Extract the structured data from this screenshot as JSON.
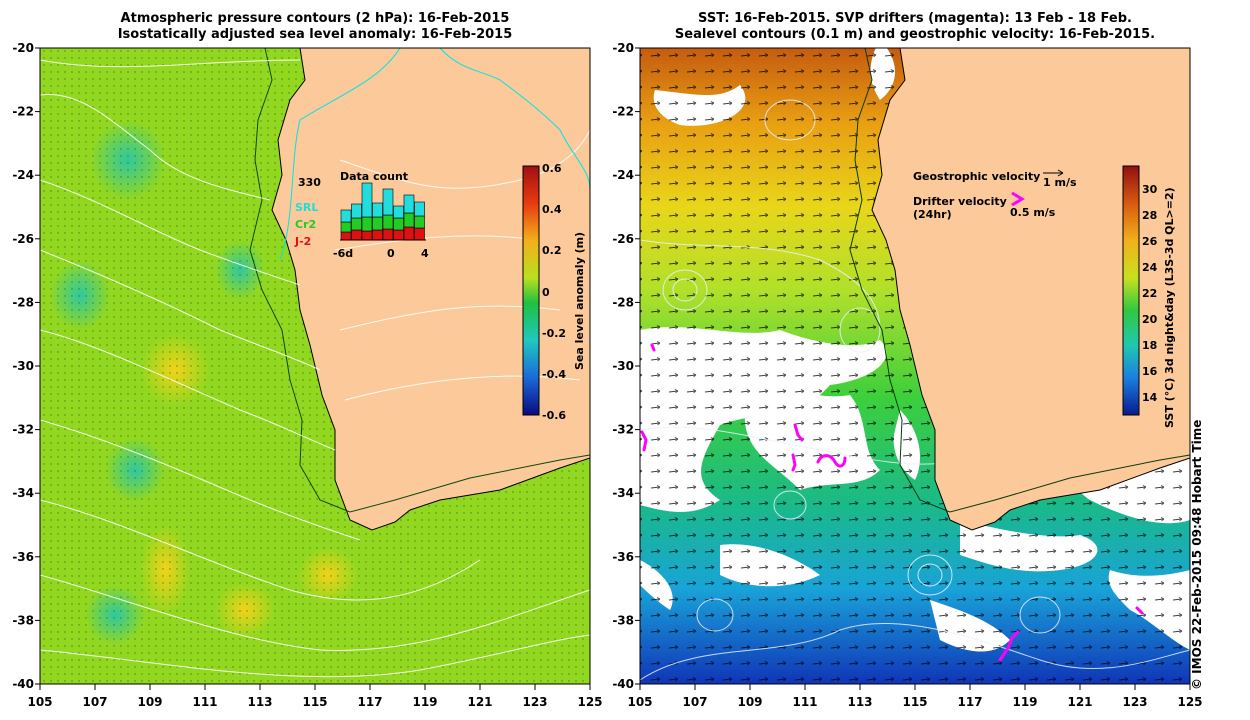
{
  "left_panel": {
    "title_line1": "Atmospheric pressure contours (2 hPa): 16-Feb-2015",
    "title_line2": "Isostatically adjusted sea level anomaly: 16-Feb-2015",
    "colorbar_label": "Sea level anomaly (m)",
    "colorbar_ticks": [
      "0.6",
      "0.4",
      "0.2",
      "0",
      "-0.2",
      "-0.4",
      "-0.6"
    ],
    "inset": {
      "title": "Data count",
      "max_label": "330",
      "x_ticks": [
        "-6d",
        "0",
        "4"
      ],
      "missions": [
        {
          "name": "SRL",
          "color": "#22dddd"
        },
        {
          "name": "Cr2",
          "color": "#22cc22"
        },
        {
          "name": "J-2",
          "color": "#dd1111"
        }
      ]
    }
  },
  "right_panel": {
    "title_line1": "SST: 16-Feb-2015. SVP drifters (magenta): 13 Feb - 18 Feb.",
    "title_line2": "Sealevel contours (0.1 m) and geostrophic velocity: 16-Feb-2015.",
    "legend_geo_label": "Geostrophic velocity",
    "legend_geo_value": "1 m/s",
    "legend_drifter_label": "Drifter velocity",
    "legend_drifter_sub": "(24hr)",
    "legend_drifter_value": "0.5 m/s",
    "colorbar_label": "SST (°C) 3d night&day (L3S-3d QL>=2)",
    "colorbar_ticks": [
      "30",
      "28",
      "26",
      "24",
      "22",
      "20",
      "18",
      "16",
      "14"
    ]
  },
  "axes": {
    "y_ticks": [
      "-20",
      "-22",
      "-24",
      "-26",
      "-28",
      "-30",
      "-32",
      "-34",
      "-36",
      "-38",
      "-40"
    ],
    "x_ticks": [
      "105",
      "107",
      "109",
      "111",
      "113",
      "115",
      "117",
      "119",
      "121",
      "123",
      "125"
    ]
  },
  "copyright": "© IMOS 22-Feb-2015 09:48 Hobart Time",
  "colors": {
    "land": "#fbc99a",
    "ocean_green": "#7ed321",
    "ocean_light": "#b6e31c",
    "pressure_contours": "#ffffff",
    "coastline_contour": "#00e5e5",
    "drifters": "#ff00ff"
  }
}
